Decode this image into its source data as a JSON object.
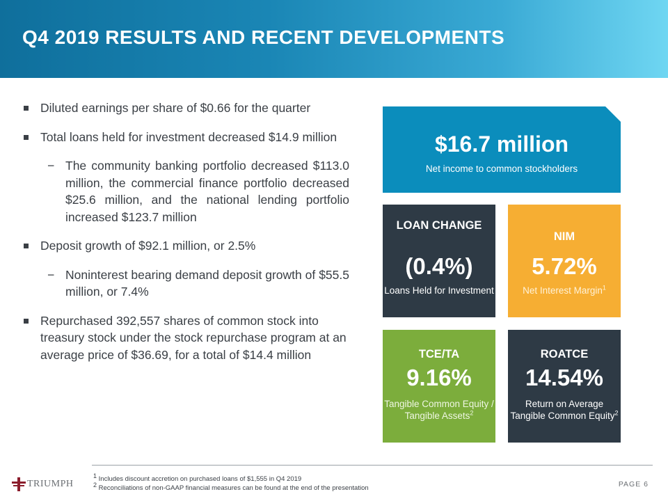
{
  "header": {
    "title": "Q4 2019 RESULTS AND RECENT DEVELOPMENTS"
  },
  "bullets": [
    {
      "level": 1,
      "text": "Diluted earnings per share of $0.66 for the quarter"
    },
    {
      "level": 1,
      "text": "Total loans held for investment decreased $14.9 million"
    },
    {
      "level": 2,
      "text": "The community banking portfolio decreased $113.0 million, the commercial finance portfolio decreased $25.6 million, and the national lending portfolio increased $123.7 million"
    },
    {
      "level": 1,
      "text": "Deposit growth of $92.1 million, or 2.5%"
    },
    {
      "level": 2,
      "text": "Noninterest bearing demand deposit growth of $55.5 million, or 7.4%"
    },
    {
      "level": 1,
      "text": "Repurchased 392,557 shares of common stock into treasury stock under the stock repurchase program at an average price of $36.69, for a total of $14.4 million"
    }
  ],
  "highlight": {
    "value": "$16.7 million",
    "label": "Net income to common stockholders",
    "color": "#0b8dbc"
  },
  "tiles": {
    "loan": {
      "heading": "LOAN CHANGE",
      "value": "(0.4%)",
      "label": "Loans Held for Investment",
      "color": "#2e3a45"
    },
    "nim": {
      "heading": "NIM",
      "value": "5.72%",
      "label": "Net Interest Margin",
      "footnote": "1",
      "color": "#f6ae33"
    },
    "tce": {
      "heading": "TCE/TA",
      "value": "9.16%",
      "label": "Tangible Common Equity / Tangible Assets",
      "footnote": "2",
      "color": "#7cad3c"
    },
    "roatce": {
      "heading": "ROATCE",
      "value": "14.54%",
      "label": "Return on Average Tangible Common Equity",
      "footnote": "2",
      "color": "#2e3a45"
    }
  },
  "footer": {
    "logo_text": "TRIUMPH",
    "notes": [
      {
        "mark": "1",
        "text": "Includes discount accretion on purchased loans of $1,555 in Q4 2019"
      },
      {
        "mark": "2",
        "text": "Reconciliations of non-GAAP financial measures can be found at the end of the presentation"
      }
    ],
    "page_label": "PAGE",
    "page_number": "6"
  }
}
